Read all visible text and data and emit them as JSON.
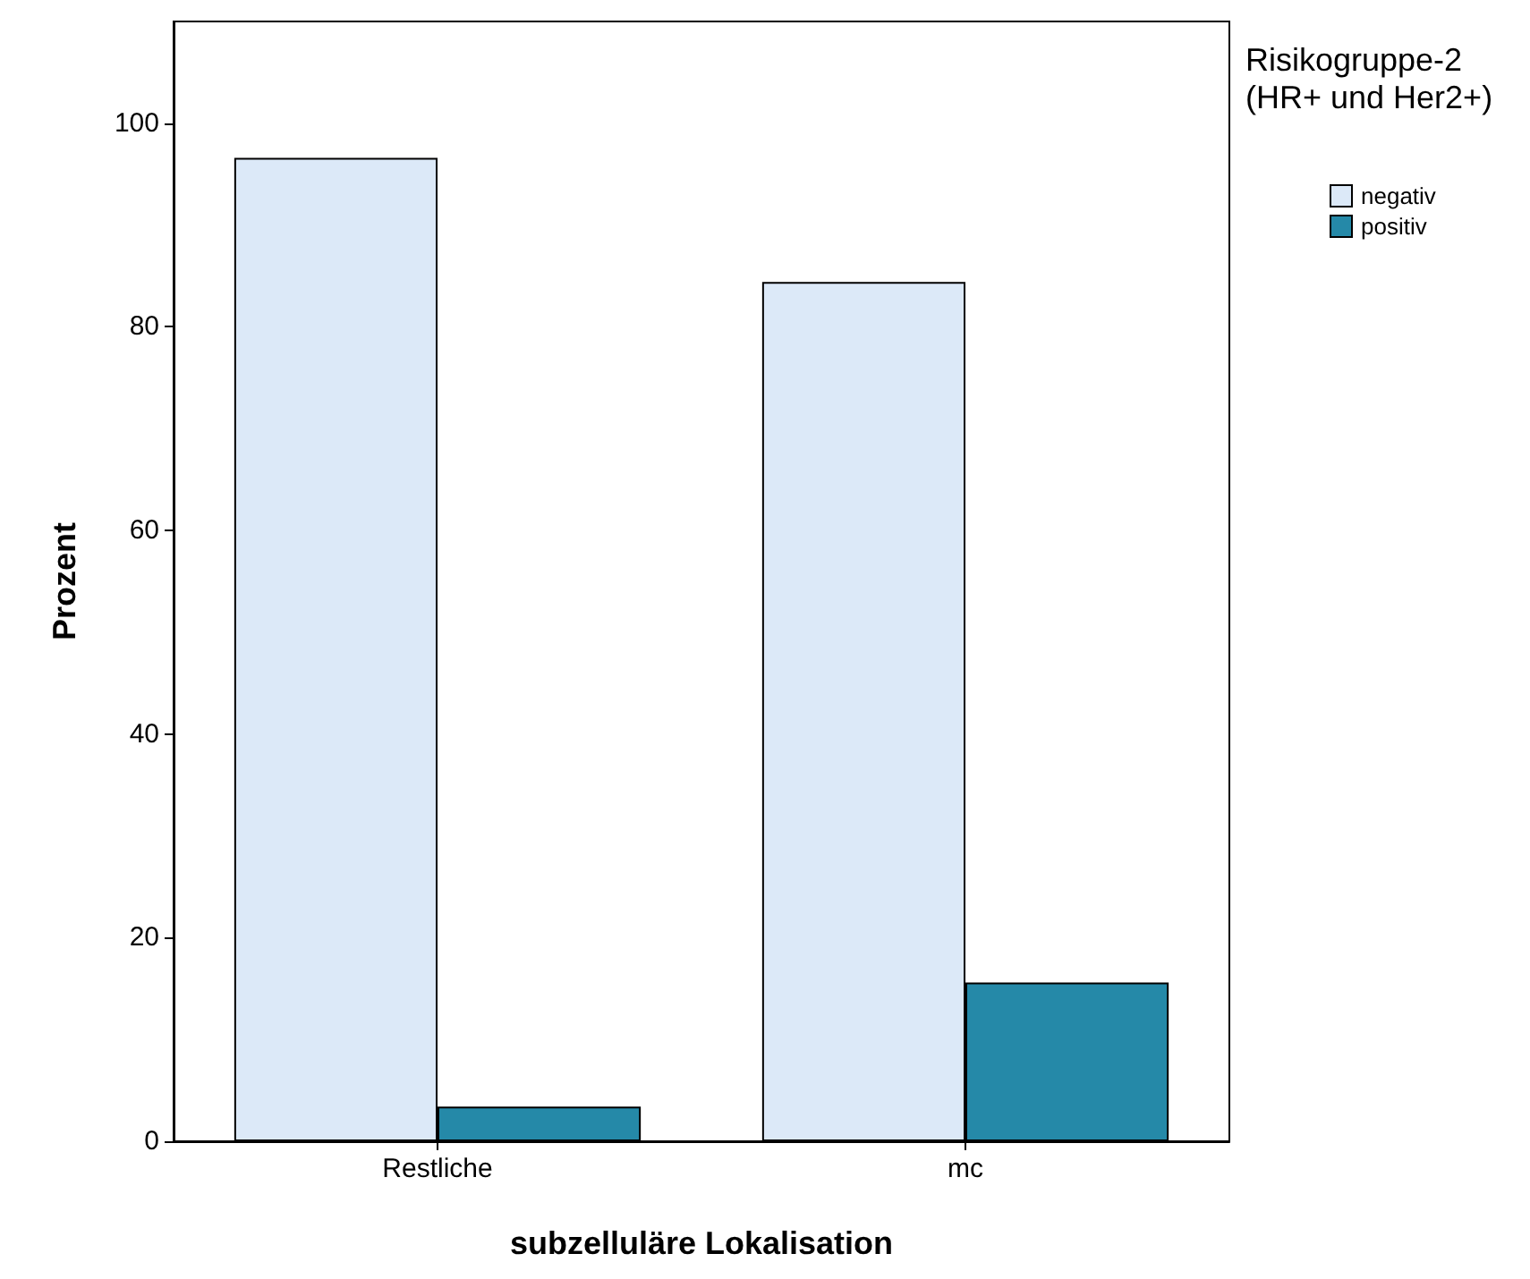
{
  "chart_data": {
    "type": "bar",
    "xlabel": "subzelluläre Lokalisation",
    "ylabel": "Prozent",
    "legend_title": "Risikogruppe-2 (HR+ und Her2+)",
    "categories": [
      "Restliche",
      "mc"
    ],
    "series": [
      {
        "name": "negativ",
        "color": "#dce9f8",
        "values": [
          96.6,
          84.4
        ]
      },
      {
        "name": "positiv",
        "color": "#2589a8",
        "values": [
          3.4,
          15.6
        ]
      }
    ],
    "ylim": [
      0,
      110
    ],
    "yticks": [
      0,
      20,
      40,
      60,
      80,
      100
    ],
    "grid": false,
    "legend": "top right"
  }
}
